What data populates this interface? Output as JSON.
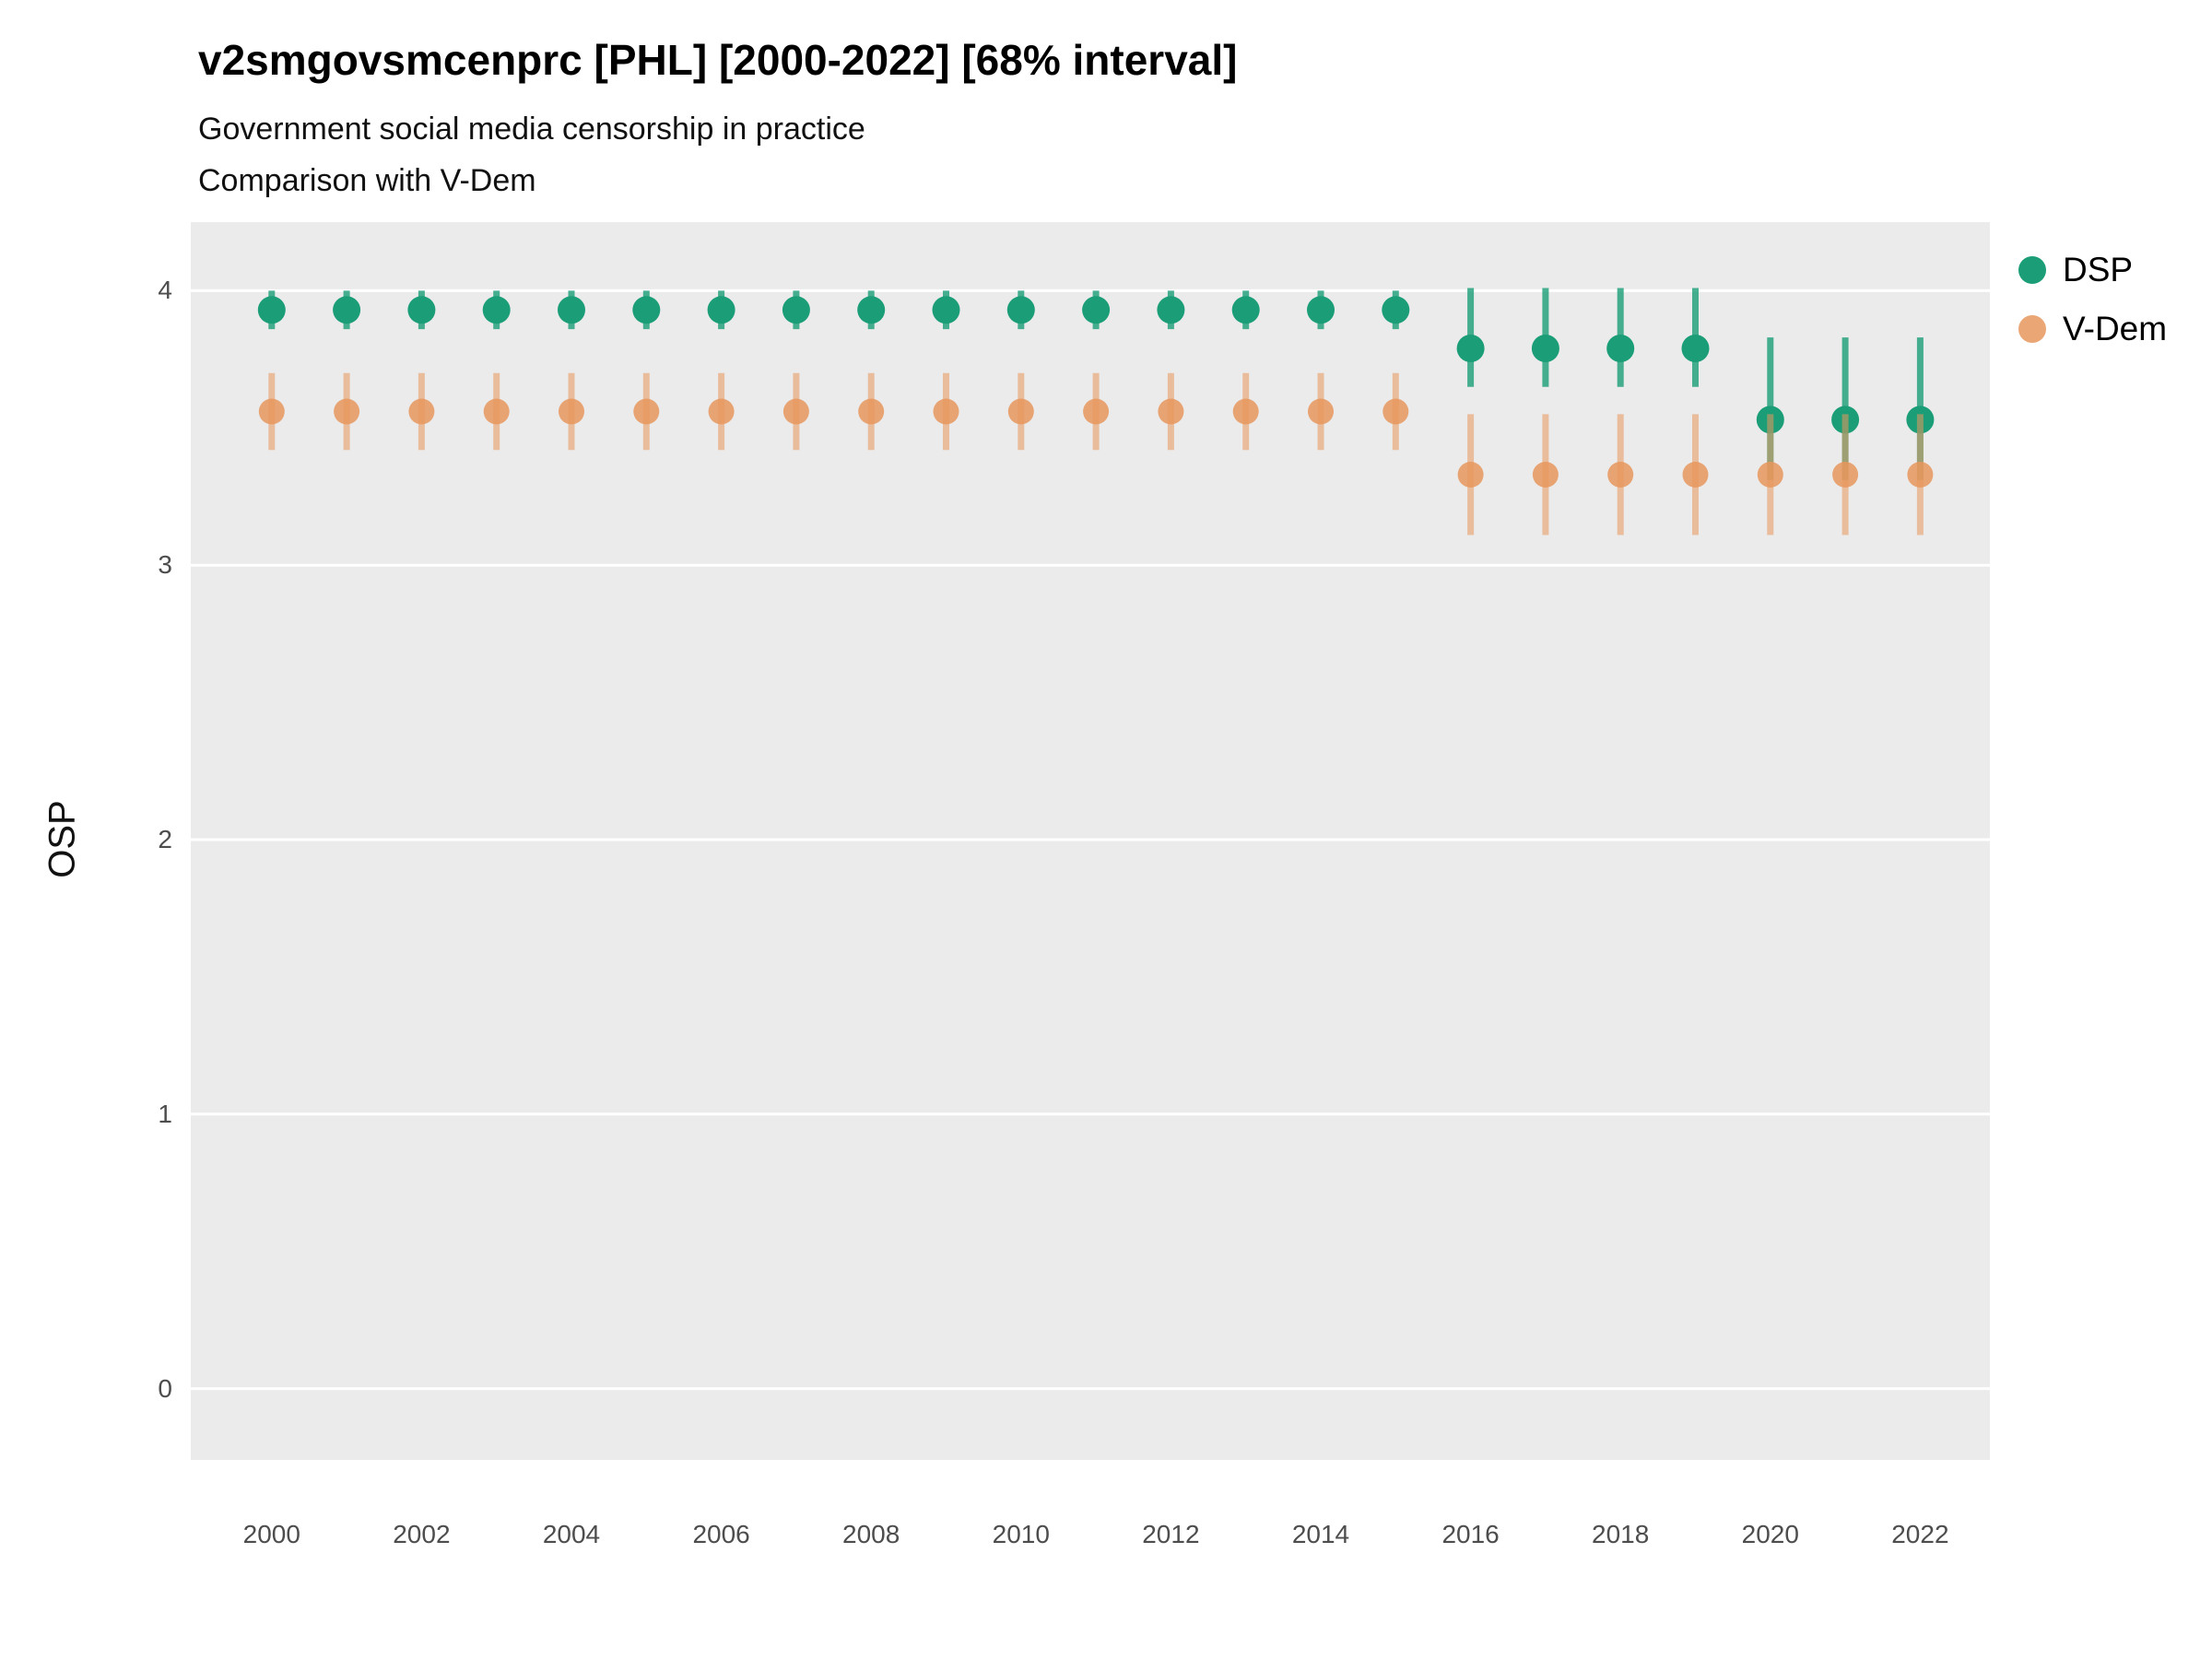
{
  "chart_data": {
    "type": "pointrange",
    "title": "v2smgovsmcenprc [PHL] [2000-2022] [68% interval]",
    "subtitle": "Government social media censorship in practice",
    "subtitle2": "Comparison with V-Dem",
    "ylabel": "OSP",
    "xlabel": "",
    "x": [
      2000,
      2001,
      2002,
      2003,
      2004,
      2005,
      2006,
      2007,
      2008,
      2009,
      2010,
      2011,
      2012,
      2013,
      2014,
      2015,
      2016,
      2017,
      2018,
      2019,
      2020,
      2021,
      2022
    ],
    "x_ticks": [
      2000,
      2002,
      2004,
      2006,
      2008,
      2010,
      2012,
      2014,
      2016,
      2018,
      2020,
      2022
    ],
    "y_ticks": [
      0,
      1,
      2,
      3,
      4
    ],
    "xlim": [
      1998.92,
      2022.93
    ],
    "ylim": [
      -0.26,
      4.25
    ],
    "grid": "horizontal-major",
    "legend_position": "right",
    "colors": {
      "panel_bg": "#EBEBEB",
      "gridline": "#FFFFFF",
      "tick_text": "#4d4d4d",
      "title_text": "#000000"
    },
    "series": [
      {
        "name": "DSP",
        "color": "#1b9e77",
        "est": [
          3.93,
          3.93,
          3.93,
          3.93,
          3.93,
          3.93,
          3.93,
          3.93,
          3.93,
          3.93,
          3.93,
          3.93,
          3.93,
          3.93,
          3.93,
          3.93,
          3.79,
          3.79,
          3.79,
          3.79,
          3.53,
          3.53,
          3.53
        ],
        "lo": [
          3.86,
          3.86,
          3.86,
          3.86,
          3.86,
          3.86,
          3.86,
          3.86,
          3.86,
          3.86,
          3.86,
          3.86,
          3.86,
          3.86,
          3.86,
          3.86,
          3.65,
          3.65,
          3.65,
          3.65,
          3.31,
          3.31,
          3.31
        ],
        "hi": [
          4.0,
          4.0,
          4.0,
          4.0,
          4.0,
          4.0,
          4.0,
          4.0,
          4.0,
          4.0,
          4.0,
          4.0,
          4.0,
          4.0,
          4.0,
          4.0,
          4.01,
          4.01,
          4.01,
          4.01,
          3.83,
          3.83,
          3.83
        ]
      },
      {
        "name": "V-Dem",
        "color": "#e8975d",
        "est": [
          3.56,
          3.56,
          3.56,
          3.56,
          3.56,
          3.56,
          3.56,
          3.56,
          3.56,
          3.56,
          3.56,
          3.56,
          3.56,
          3.56,
          3.56,
          3.56,
          3.33,
          3.33,
          3.33,
          3.33,
          3.33,
          3.33,
          3.33
        ],
        "lo": [
          3.42,
          3.42,
          3.42,
          3.42,
          3.42,
          3.42,
          3.42,
          3.42,
          3.42,
          3.42,
          3.42,
          3.42,
          3.42,
          3.42,
          3.42,
          3.42,
          3.11,
          3.11,
          3.11,
          3.11,
          3.11,
          3.11,
          3.11
        ],
        "hi": [
          3.7,
          3.7,
          3.7,
          3.7,
          3.7,
          3.7,
          3.7,
          3.7,
          3.7,
          3.7,
          3.7,
          3.7,
          3.7,
          3.7,
          3.7,
          3.7,
          3.55,
          3.55,
          3.55,
          3.55,
          3.55,
          3.55,
          3.55
        ]
      }
    ]
  }
}
